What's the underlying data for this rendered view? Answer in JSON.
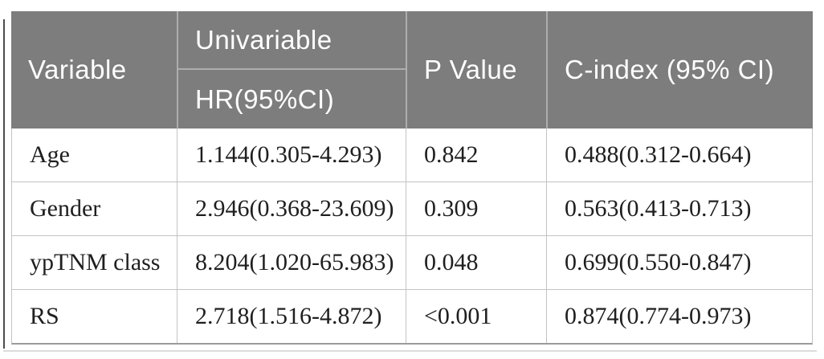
{
  "table": {
    "header": {
      "variable": "Variable",
      "univariable": "Univariable",
      "hr": "HR(95%CI)",
      "p_value": "P Value",
      "c_index": "C-index (95% CI)"
    },
    "rows": [
      {
        "variable": "Age",
        "hr": "1.144(0.305-4.293)",
        "p": "0.842",
        "cindex": "0.488(0.312-0.664)"
      },
      {
        "variable": "Gender",
        "hr": "2.946(0.368-23.609)",
        "p": "0.309",
        "cindex": "0.563(0.413-0.713)"
      },
      {
        "variable": "ypTNM class",
        "hr": "8.204(1.020-65.983)",
        "p": "0.048",
        "cindex": "0.699(0.550-0.847)"
      },
      {
        "variable": "RS",
        "hr": "2.718(1.516-4.872)",
        "p": "<0.001",
        "cindex": "0.874(0.774-0.973)"
      }
    ]
  },
  "chart_data": {
    "type": "table",
    "columns": [
      "Variable",
      "Univariable HR(95%CI)",
      "P Value",
      "C-index (95% CI)"
    ],
    "rows": [
      [
        "Age",
        "1.144(0.305-4.293)",
        "0.842",
        "0.488(0.312-0.664)"
      ],
      [
        "Gender",
        "2.946(0.368-23.609)",
        "0.309",
        "0.563(0.413-0.713)"
      ],
      [
        "ypTNM class",
        "8.204(1.020-65.983)",
        "0.048",
        "0.699(0.550-0.847)"
      ],
      [
        "RS",
        "2.718(1.516-4.872)",
        "<0.001",
        "0.874(0.774-0.973)"
      ]
    ]
  },
  "colors": {
    "header_bg": "#7d7d7d",
    "header_text": "#ffffff",
    "header_divider": "#adadad",
    "grid_line": "#c3c3c3",
    "bottom_line": "#9b9b9b",
    "body_text": "#1f1f1f",
    "edge_line": "#4c4c4c",
    "shadow_line": "#dcdcdc"
  }
}
